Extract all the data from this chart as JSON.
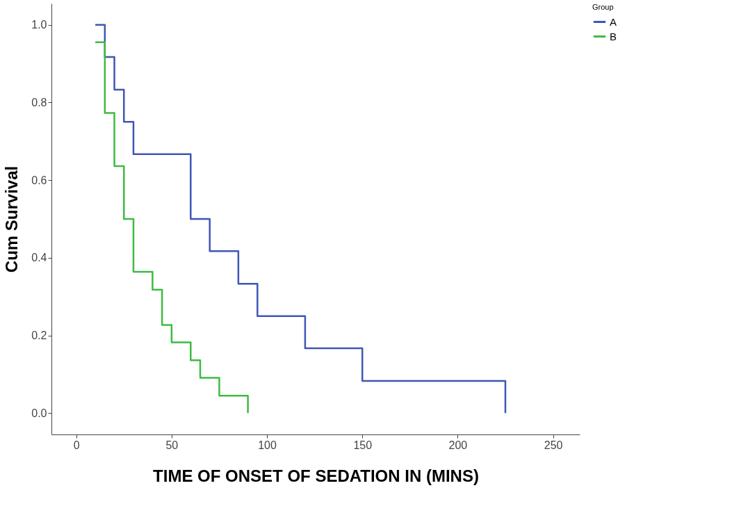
{
  "chart_data": {
    "type": "step",
    "xlabel": "TIME OF ONSET OF SEDATION IN (MINS)",
    "ylabel": "Cum Survival",
    "legend_title": "Group",
    "series": [
      {
        "name": "A",
        "color": "#3f56b5",
        "x": [
          10,
          15,
          20,
          25,
          30,
          60,
          70,
          85,
          95,
          120,
          150,
          225
        ],
        "values": [
          1.0,
          0.917,
          0.833,
          0.75,
          0.667,
          0.5,
          0.417,
          0.333,
          0.25,
          0.167,
          0.083,
          0
        ]
      },
      {
        "name": "B",
        "color": "#3dbb43",
        "x": [
          10,
          15,
          20,
          25,
          30,
          40,
          45,
          50,
          60,
          65,
          75,
          90
        ],
        "values": [
          0.955,
          0.773,
          0.636,
          0.5,
          0.364,
          0.318,
          0.227,
          0.182,
          0.136,
          0.091,
          0.045,
          0
        ]
      }
    ],
    "xlim": [
      -13,
      264
    ],
    "xticks": [
      0,
      50,
      100,
      150,
      200,
      250
    ],
    "ylim": [
      -0.055,
      1.055
    ],
    "yticks": [
      {
        "value": 0,
        "label": "0.0"
      },
      {
        "value": 0.2,
        "label": "0.2"
      },
      {
        "value": 0.4,
        "label": "0.4"
      },
      {
        "value": 0.6,
        "label": "0.6"
      },
      {
        "value": 0.8,
        "label": "0.8"
      },
      {
        "value": 1,
        "label": "1.0"
      }
    ],
    "grid": false,
    "legend": "top right"
  }
}
